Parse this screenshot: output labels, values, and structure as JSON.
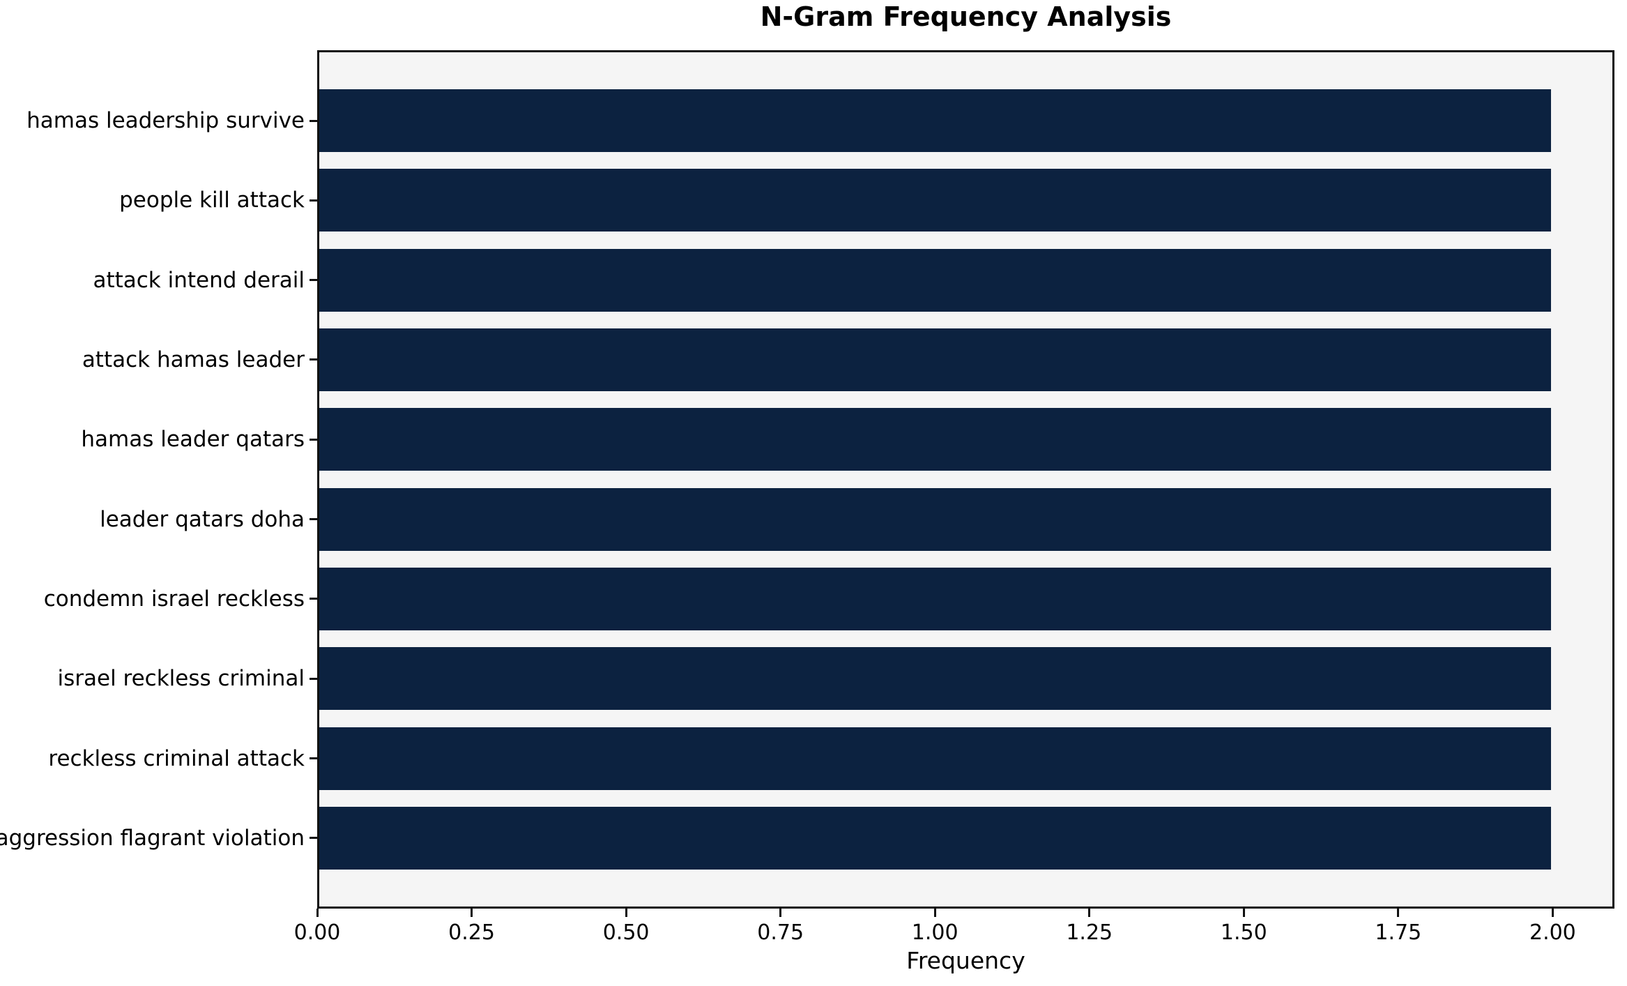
{
  "chart_data": {
    "type": "bar",
    "orientation": "horizontal",
    "title": "N-Gram Frequency Analysis",
    "xlabel": "Frequency",
    "ylabel": "",
    "categories": [
      "hamas leadership survive",
      "people kill attack",
      "attack intend derail",
      "attack hamas leader",
      "hamas leader qatars",
      "leader qatars doha",
      "condemn israel reckless",
      "israel reckless criminal",
      "reckless criminal attack",
      "aggression flagrant violation"
    ],
    "values": [
      2,
      2,
      2,
      2,
      2,
      2,
      2,
      2,
      2,
      2
    ],
    "xlim": [
      0,
      2.1
    ],
    "xticks": [
      0,
      0.25,
      0.5,
      0.75,
      1,
      1.25,
      1.5,
      1.75,
      2
    ],
    "xtick_labels": [
      "0.00",
      "0.25",
      "0.50",
      "0.75",
      "1.00",
      "1.25",
      "1.50",
      "1.75",
      "2.00"
    ],
    "bar_color": "#0c2240",
    "plot_background": "#f5f5f5",
    "figure_background": "#ffffff",
    "grid": false,
    "legend": null
  }
}
